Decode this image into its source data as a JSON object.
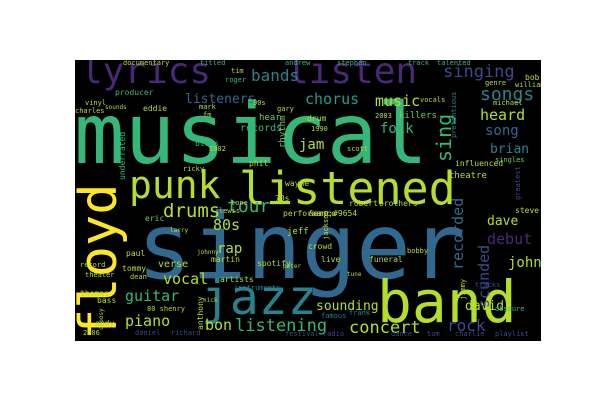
{
  "colors": {
    "background": "#000000",
    "palette": [
      "#440154",
      "#482878",
      "#3e4989",
      "#31688e",
      "#26828e",
      "#1f9e89",
      "#35b779",
      "#6ece58",
      "#b5de2b",
      "#fde725"
    ]
  },
  "words": [
    {
      "text": "musical",
      "color": "#35b779"
    },
    {
      "text": "singer",
      "color": "#31688e"
    },
    {
      "text": "band",
      "color": "#b5de2b"
    },
    {
      "text": "listened",
      "color": "#b5de2b"
    },
    {
      "text": "punk",
      "color": "#b5de2b"
    },
    {
      "text": "jazz",
      "color": "#26828e"
    },
    {
      "text": "floyd",
      "color": "#fde725"
    },
    {
      "text": "lyrics",
      "color": "#482878"
    },
    {
      "text": "listen",
      "color": "#482878"
    },
    {
      "text": "singing",
      "color": "#3e4989"
    },
    {
      "text": "bands",
      "color": "#26828e"
    },
    {
      "text": "listeners",
      "color": "#31688e"
    },
    {
      "text": "chorus",
      "color": "#1f9e89"
    },
    {
      "text": "songs",
      "color": "#26828e"
    },
    {
      "text": "music",
      "color": "#b5de2b"
    },
    {
      "text": "tour",
      "color": "#35b779"
    },
    {
      "text": "drums",
      "color": "#b5de2b"
    },
    {
      "text": "80s",
      "color": "#b5de2b"
    },
    {
      "text": "rap",
      "color": "#b5de2b"
    },
    {
      "text": "eric",
      "color": "#6ece58"
    },
    {
      "text": "guitar",
      "color": "#35b779"
    },
    {
      "text": "vocal",
      "color": "#b5de2b"
    },
    {
      "text": "piano",
      "color": "#b5de2b"
    },
    {
      "text": "bon",
      "color": "#b5de2b"
    },
    {
      "text": "listening",
      "color": "#35b779"
    },
    {
      "text": "concert",
      "color": "#b5de2b"
    },
    {
      "text": "rock",
      "color": "#3e4989"
    },
    {
      "text": "sounding",
      "color": "#b5de2b"
    },
    {
      "text": "debut",
      "color": "#482878"
    },
    {
      "text": "dave",
      "color": "#b5de2b"
    },
    {
      "text": "john",
      "color": "#b5de2b"
    },
    {
      "text": "david",
      "color": "#b5de2b"
    },
    {
      "text": "song",
      "color": "#31688e"
    },
    {
      "text": "heard",
      "color": "#b5de2b"
    },
    {
      "text": "brian",
      "color": "#26828e"
    },
    {
      "text": "sing",
      "color": "#35b779"
    },
    {
      "text": "scunded",
      "color": "#3e4989"
    },
    {
      "text": "recorded",
      "color": "#31688e"
    },
    {
      "text": "folk",
      "color": "#35b779"
    },
    {
      "text": "jam",
      "color": "#b5de2b"
    },
    {
      "text": "records",
      "color": "#35b779"
    },
    {
      "text": "hear",
      "color": "#6ece58"
    },
    {
      "text": "rhythm",
      "color": "#6ece58"
    },
    {
      "text": "killers",
      "color": "#6ece58"
    },
    {
      "text": "producer",
      "color": "#35b779"
    },
    {
      "text": "tommy",
      "color": "#b5de2b"
    },
    {
      "text": "paul",
      "color": "#b5de2b"
    },
    {
      "text": "verse",
      "color": "#b5de2b"
    },
    {
      "text": "martin",
      "color": "#b5de2b"
    },
    {
      "text": "artists",
      "color": "#b5de2b"
    },
    {
      "text": "instruments",
      "color": "#26828e"
    },
    {
      "text": "robert",
      "color": "#b5de2b"
    },
    {
      "text": "brothers",
      "color": "#b5de2b"
    },
    {
      "text": "crowd",
      "color": "#b5de2b"
    },
    {
      "text": "live",
      "color": "#b5de2b"
    },
    {
      "text": "funeral",
      "color": "#b5de2b"
    },
    {
      "text": "andy",
      "color": "#b5de2b"
    },
    {
      "text": "thomas",
      "color": "#b5de2b"
    },
    {
      "text": "daniel",
      "color": "#3e4989"
    },
    {
      "text": "richard",
      "color": "#3e4989"
    },
    {
      "text": "blues",
      "color": "#35b779"
    },
    {
      "text": "phil",
      "color": "#b5de2b"
    },
    {
      "text": "jeff",
      "color": "#b5de2b"
    },
    {
      "text": "wayne",
      "color": "#b5de2b"
    },
    {
      "text": "steve",
      "color": "#b5de2b"
    },
    {
      "text": "eddie",
      "color": "#b5de2b"
    },
    {
      "text": "singles",
      "color": "#6ece58"
    },
    {
      "text": "tracks",
      "color": "#3e4989"
    },
    {
      "text": "vinyl",
      "color": "#b5de2b"
    },
    {
      "text": "sounds",
      "color": "#b5de2b"
    },
    {
      "text": "festival",
      "color": "#3e4989"
    },
    {
      "text": "radio",
      "color": "#3e4989"
    },
    {
      "text": "dance",
      "color": "#3e4989"
    },
    {
      "text": "tom",
      "color": "#3e4989"
    },
    {
      "text": "charlie",
      "color": "#3e4989"
    },
    {
      "text": "playlist",
      "color": "#3e4989"
    },
    {
      "text": "theatre",
      "color": "#b5de2b"
    },
    {
      "text": "influenced",
      "color": "#b5de2b"
    },
    {
      "text": "performance",
      "color": "#b5de2b"
    },
    {
      "text": "spotify",
      "color": "#b5de2b"
    },
    {
      "text": "frank",
      "color": "#26828e"
    },
    {
      "text": "famous",
      "color": "#26828e"
    },
    {
      "text": "pretentious",
      "color": "#26828e"
    },
    {
      "text": "underrated",
      "color": "#35b779"
    },
    {
      "text": "documentary",
      "color": "#b5de2b"
    },
    {
      "text": "talented",
      "color": "#35b779"
    },
    {
      "text": "stephen",
      "color": "#35b779"
    },
    {
      "text": "andrew",
      "color": "#35b779"
    },
    {
      "text": "titled",
      "color": "#35b779"
    },
    {
      "text": "track",
      "color": "#35b779"
    },
    {
      "text": "roger",
      "color": "#35b779"
    },
    {
      "text": "genre",
      "color": "#b5de2b"
    },
    {
      "text": "william",
      "color": "#b5de2b"
    },
    {
      "text": "bob",
      "color": "#b5de2b"
    },
    {
      "text": "michael",
      "color": "#b5de2b"
    },
    {
      "text": "greatest",
      "color": "#3e4989"
    },
    {
      "text": "obscure",
      "color": "#35b779"
    },
    {
      "text": "scott",
      "color": "#b5de2b"
    },
    {
      "text": "gary",
      "color": "#b5de2b"
    },
    {
      "text": "drum",
      "color": "#b5de2b"
    },
    {
      "text": "1990",
      "color": "#b5de2b"
    },
    {
      "text": "2003",
      "color": "#b5de2b"
    },
    {
      "text": "2002",
      "color": "#b5de2b"
    },
    {
      "text": "2006",
      "color": "#b5de2b"
    },
    {
      "text": "70s",
      "color": "#b5de2b"
    },
    {
      "text": "90s",
      "color": "#b5de2b"
    },
    {
      "text": "80 shenry",
      "color": "#b5de2b"
    },
    {
      "text": "charles",
      "color": "#b5de2b"
    },
    {
      "text": "mark",
      "color": "#b5de2b"
    },
    {
      "text": "anthony",
      "color": "#b5de2b"
    },
    {
      "text": "peter",
      "color": "#b5de2b"
    },
    {
      "text": "larry",
      "color": "#b5de2b"
    },
    {
      "text": "jimmy",
      "color": "#b5de2b"
    },
    {
      "text": "tone",
      "color": "#b5de2b"
    },
    {
      "text": "nick",
      "color": "#b5de2b"
    },
    {
      "text": "jackson",
      "color": "#b5de2b"
    },
    {
      "text": "ricky",
      "color": "#b5de2b"
    },
    {
      "text": "lewis",
      "color": "#b5de2b"
    },
    {
      "text": "dean",
      "color": "#b5de2b"
    },
    {
      "text": "record",
      "color": "#b5de2b"
    },
    {
      "text": "bass",
      "color": "#b5de2b"
    },
    {
      "text": "vocals",
      "color": "#b5de2b"
    },
    {
      "text": "johnny",
      "color": "#b5de2b"
    },
    {
      "text": "&amp;#9654",
      "color": "#b5de2b"
    },
    {
      "text": "bobby",
      "color": "#b5de2b"
    },
    {
      "text": "tune",
      "color": "#b5de2b"
    },
    {
      "text": "theater",
      "color": "#b5de2b"
    },
    {
      "text": "choosy",
      "color": "#b5de2b"
    },
    {
      "text": "tim",
      "color": "#b5de2b"
    },
    {
      "text": "fm",
      "color": "#b5de2b"
    }
  ]
}
